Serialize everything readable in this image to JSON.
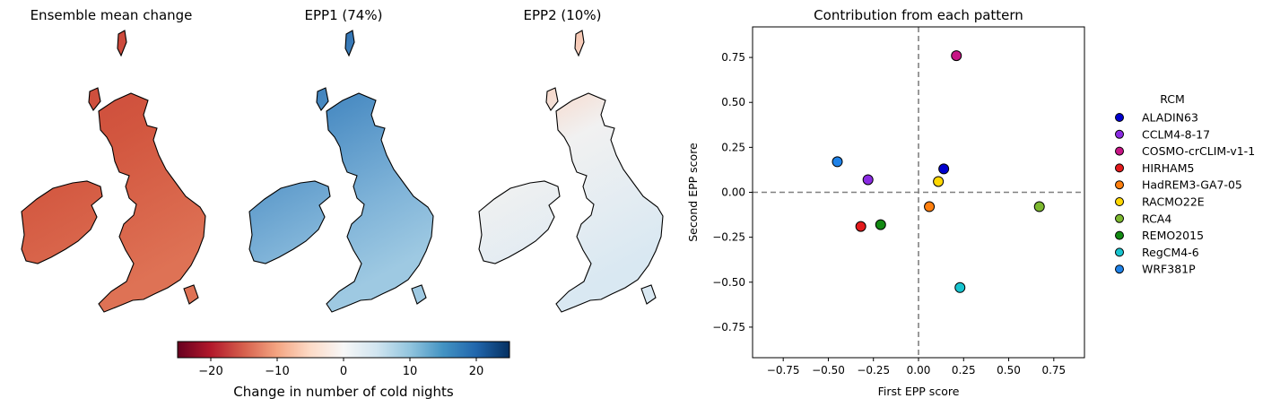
{
  "maps": [
    {
      "title": "Ensemble mean change",
      "kind": "mean"
    },
    {
      "title": "EPP1 (74%)",
      "kind": "epp1"
    },
    {
      "title": "EPP2 (10%)",
      "kind": "epp2"
    }
  ],
  "colorbar": {
    "label": "Change in number of cold nights",
    "range": [
      -25,
      25
    ],
    "ticks": [
      -20,
      -10,
      0,
      10,
      20
    ],
    "tick_labels": [
      "−20",
      "−10",
      "0",
      "10",
      "20"
    ],
    "colormap": "RdBu",
    "colors": [
      "#67001f",
      "#b2182b",
      "#d6604d",
      "#f4a582",
      "#fddbc7",
      "#f7f7f7",
      "#d1e5f0",
      "#92c5de",
      "#4393c3",
      "#2166ac",
      "#053061"
    ]
  },
  "chart_data": {
    "type": "scatter",
    "title": "Contribution from each pattern",
    "xlabel": "First EPP score",
    "ylabel": "Second EPP score",
    "xlim": [
      -0.92,
      0.92
    ],
    "ylim": [
      -0.92,
      0.92
    ],
    "xticks": [
      -0.75,
      -0.5,
      -0.25,
      0.0,
      0.25,
      0.5,
      0.75
    ],
    "yticks": [
      -0.75,
      -0.5,
      -0.25,
      0.0,
      0.25,
      0.5,
      0.75
    ],
    "xtick_labels": [
      "−0.75",
      "−0.50",
      "−0.25",
      "0.00",
      "0.25",
      "0.50",
      "0.75"
    ],
    "ytick_labels": [
      "−0.75",
      "−0.50",
      "−0.25",
      "0.00",
      "0.25",
      "0.50",
      "0.75"
    ],
    "grid": false,
    "reference_lines": {
      "x": 0,
      "y": 0,
      "style": "dashed",
      "color": "#808080"
    },
    "legend": {
      "title": "RCM",
      "placement": "outside-right"
    },
    "series": [
      {
        "name": "ALADIN63",
        "color": "#0000cd",
        "x": 0.14,
        "y": 0.13
      },
      {
        "name": "CCLM4-8-17",
        "color": "#8a2be2",
        "x": -0.28,
        "y": 0.07
      },
      {
        "name": "COSMO-crCLIM-v1-1",
        "color": "#c71585",
        "x": 0.21,
        "y": 0.76
      },
      {
        "name": "HIRHAM5",
        "color": "#e31a1c",
        "x": -0.32,
        "y": -0.19
      },
      {
        "name": "HadREM3-GA7-05",
        "color": "#ff7f0e",
        "x": 0.06,
        "y": -0.08
      },
      {
        "name": "RACMO22E",
        "color": "#ffd700",
        "x": 0.11,
        "y": 0.06
      },
      {
        "name": "RCA4",
        "color": "#7cb82f",
        "x": 0.67,
        "y": -0.08
      },
      {
        "name": "REMO2015",
        "color": "#138a13",
        "x": -0.21,
        "y": -0.18
      },
      {
        "name": "RegCM4-6",
        "color": "#17c4cf",
        "x": 0.23,
        "y": -0.53
      },
      {
        "name": "WRF381P",
        "color": "#1f82e8",
        "x": -0.45,
        "y": 0.17
      }
    ]
  }
}
